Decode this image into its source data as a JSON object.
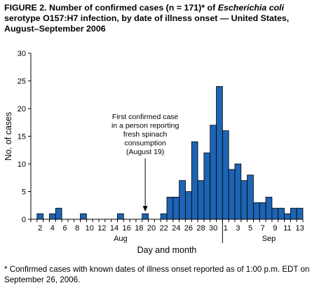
{
  "figure": {
    "label": "FIGURE 2.",
    "title_a": "Number of confirmed cases (n = 171)* of ",
    "title_italic": "Escherichia coli",
    "title_b": " serotype O157:H7 infection, by date of illness onset — United States, August–September 2006",
    "footnote": "* Confirmed cases with known dates of illness onset reported as of 1:00 p.m. EDT on September 26, 2006."
  },
  "chart_data": {
    "type": "bar",
    "xlabel": "Day and month",
    "ylabel": "No. of cases",
    "ylim": [
      0,
      30
    ],
    "yticks": [
      0,
      5,
      10,
      15,
      20,
      25,
      30
    ],
    "month_labels": [
      "Aug",
      "Sep"
    ],
    "annotation": [
      "First confirmed case",
      "in a person reporting",
      "fresh spinach",
      "consumption",
      "(August 19)"
    ],
    "annotation_target": "Aug 19",
    "categories": [
      "Aug 1",
      "Aug 2",
      "Aug 3",
      "Aug 4",
      "Aug 5",
      "Aug 6",
      "Aug 7",
      "Aug 8",
      "Aug 9",
      "Aug 10",
      "Aug 11",
      "Aug 12",
      "Aug 13",
      "Aug 14",
      "Aug 15",
      "Aug 16",
      "Aug 17",
      "Aug 18",
      "Aug 19",
      "Aug 20",
      "Aug 21",
      "Aug 22",
      "Aug 23",
      "Aug 24",
      "Aug 25",
      "Aug 26",
      "Aug 27",
      "Aug 28",
      "Aug 29",
      "Aug 30",
      "Aug 31",
      "Sep 1",
      "Sep 2",
      "Sep 3",
      "Sep 4",
      "Sep 5",
      "Sep 6",
      "Sep 7",
      "Sep 8",
      "Sep 9",
      "Sep 10",
      "Sep 11",
      "Sep 12",
      "Sep 13"
    ],
    "values": [
      0,
      1,
      0,
      1,
      2,
      0,
      0,
      0,
      1,
      0,
      0,
      0,
      0,
      0,
      1,
      0,
      0,
      0,
      1,
      0,
      0,
      1,
      4,
      4,
      7,
      5,
      14,
      7,
      12,
      17,
      24,
      16,
      9,
      10,
      7,
      8,
      3,
      3,
      4,
      2,
      2,
      1,
      2,
      2
    ],
    "xtick_labels": [
      "2",
      "4",
      "6",
      "8",
      "10",
      "12",
      "14",
      "16",
      "18",
      "20",
      "22",
      "24",
      "26",
      "28",
      "30",
      "1",
      "3",
      "5",
      "7",
      "9",
      "11",
      "13"
    ],
    "colors": {
      "bar": "#1d64b4",
      "edge": "#000000"
    }
  }
}
